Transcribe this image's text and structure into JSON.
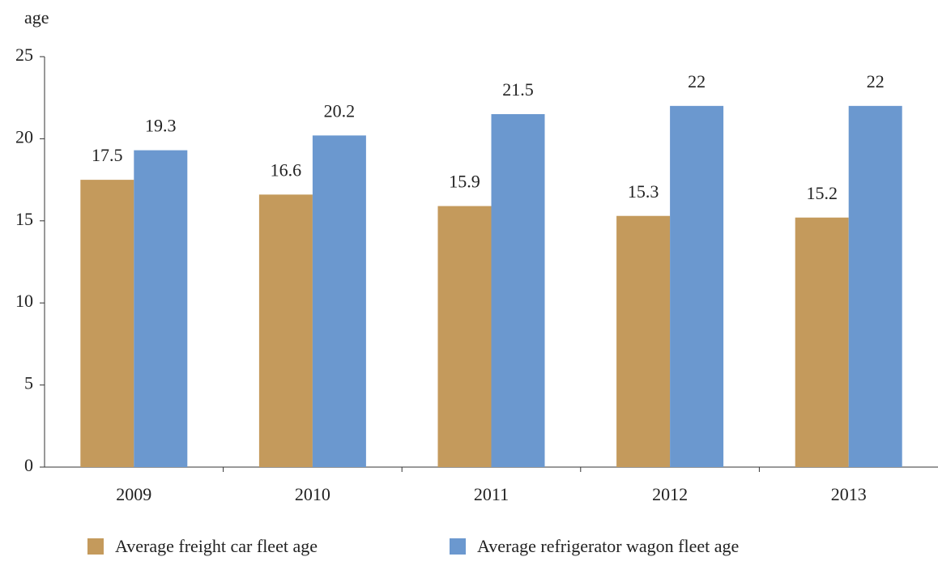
{
  "chart_data": {
    "type": "bar",
    "y_label": "age",
    "categories": [
      "2009",
      "2010",
      "2011",
      "2012",
      "2013"
    ],
    "series": [
      {
        "name": "Average freight car fleet age",
        "color": "#c49a5c",
        "values": [
          17.5,
          16.6,
          15.9,
          15.3,
          15.2
        ]
      },
      {
        "name": "Average refrigerator wagon fleet age",
        "color": "#6b98cf",
        "values": [
          19.3,
          20.2,
          21.5,
          22,
          22
        ]
      }
    ],
    "ylim": [
      0,
      25
    ],
    "yticks": [
      0,
      5,
      10,
      15,
      20,
      25
    ],
    "grid": false,
    "legend": "bottom"
  }
}
